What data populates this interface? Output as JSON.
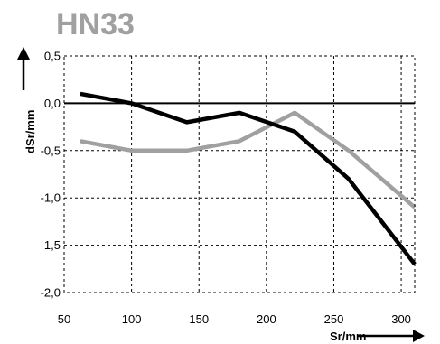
{
  "chart_data": {
    "type": "line",
    "title": "HN33",
    "xlabel": "Sr/mm",
    "ylabel": "dSr/mm",
    "xlim": [
      50,
      310
    ],
    "ylim": [
      -2.0,
      0.5
    ],
    "x_ticks": [
      50,
      100,
      150,
      200,
      250,
      300
    ],
    "x_tick_labels": [
      "50",
      "100",
      "150",
      "200",
      "250",
      "300"
    ],
    "y_ticks": [
      0.5,
      0.0,
      -0.5,
      -1.0,
      -1.5,
      -2.0
    ],
    "y_tick_labels": [
      "0,5",
      "0,0",
      "-0,5",
      "-1,0",
      "-1,5",
      "-2,0"
    ],
    "grid": true,
    "zero_line": true,
    "series": [
      {
        "color": "#000000",
        "x": [
          62,
          100,
          141,
          180,
          221,
          261,
          310
        ],
        "y": [
          0.1,
          0.0,
          -0.2,
          -0.1,
          -0.3,
          -0.8,
          -1.7
        ]
      },
      {
        "color": "#a0a0a0",
        "x": [
          62,
          100,
          141,
          180,
          221,
          261,
          310
        ],
        "y": [
          -0.4,
          -0.5,
          -0.5,
          -0.4,
          -0.1,
          -0.5,
          -1.1
        ]
      }
    ]
  }
}
